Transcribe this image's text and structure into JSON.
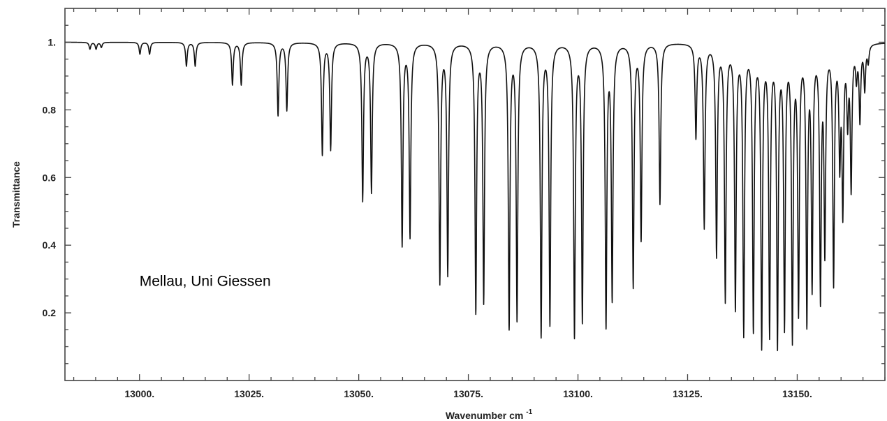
{
  "chart_data": {
    "type": "line",
    "title": "",
    "xlabel": "Wavenumber cm",
    "xlabel_superscript": "-1",
    "ylabel": "Transmittance",
    "xlim": [
      12983,
      13170
    ],
    "ylim": [
      0.0,
      1.1
    ],
    "grid": false,
    "x_ticks": [
      {
        "value": 13000,
        "label": "13000."
      },
      {
        "value": 13025,
        "label": "13025."
      },
      {
        "value": 13050,
        "label": "13050."
      },
      {
        "value": 13075,
        "label": "13075."
      },
      {
        "value": 13100,
        "label": "13100."
      },
      {
        "value": 13125,
        "label": "13125."
      },
      {
        "value": 13150,
        "label": "13150."
      }
    ],
    "y_ticks": [
      {
        "value": 0.2,
        "label": "0.2"
      },
      {
        "value": 0.4,
        "label": "0.4"
      },
      {
        "value": 0.6,
        "label": "0.6"
      },
      {
        "value": 0.8,
        "label": "0.8"
      },
      {
        "value": 1.0,
        "label": "1."
      }
    ],
    "baseline": 1.0,
    "absorption_lines": [
      {
        "x": 12988.7,
        "y": 0.98
      },
      {
        "x": 12990.1,
        "y": 0.98
      },
      {
        "x": 12991.3,
        "y": 0.985
      },
      {
        "x": 13000.1,
        "y": 0.965
      },
      {
        "x": 13002.3,
        "y": 0.965
      },
      {
        "x": 13010.7,
        "y": 0.93
      },
      {
        "x": 13012.7,
        "y": 0.93
      },
      {
        "x": 13021.2,
        "y": 0.875
      },
      {
        "x": 13023.2,
        "y": 0.875
      },
      {
        "x": 13031.6,
        "y": 0.785
      },
      {
        "x": 13033.6,
        "y": 0.8
      },
      {
        "x": 13041.7,
        "y": 0.67
      },
      {
        "x": 13043.6,
        "y": 0.685
      },
      {
        "x": 13050.9,
        "y": 0.535
      },
      {
        "x": 13052.9,
        "y": 0.56
      },
      {
        "x": 13059.9,
        "y": 0.405
      },
      {
        "x": 13061.7,
        "y": 0.43
      },
      {
        "x": 13068.5,
        "y": 0.295
      },
      {
        "x": 13070.3,
        "y": 0.32
      },
      {
        "x": 13076.7,
        "y": 0.21
      },
      {
        "x": 13078.5,
        "y": 0.24
      },
      {
        "x": 13084.3,
        "y": 0.165
      },
      {
        "x": 13086.1,
        "y": 0.19
      },
      {
        "x": 13091.6,
        "y": 0.14
      },
      {
        "x": 13093.6,
        "y": 0.175
      },
      {
        "x": 13099.2,
        "y": 0.14
      },
      {
        "x": 13101.0,
        "y": 0.185
      },
      {
        "x": 13106.4,
        "y": 0.175
      },
      {
        "x": 13107.8,
        "y": 0.255
      },
      {
        "x": 13112.6,
        "y": 0.285
      },
      {
        "x": 13114.4,
        "y": 0.425
      },
      {
        "x": 13118.7,
        "y": 0.525
      },
      {
        "x": 13126.9,
        "y": 0.725
      },
      {
        "x": 13128.8,
        "y": 0.46
      },
      {
        "x": 13131.6,
        "y": 0.38
      },
      {
        "x": 13133.6,
        "y": 0.25
      },
      {
        "x": 13135.9,
        "y": 0.23
      },
      {
        "x": 13137.8,
        "y": 0.155
      },
      {
        "x": 13140.0,
        "y": 0.17
      },
      {
        "x": 13141.9,
        "y": 0.125
      },
      {
        "x": 13143.7,
        "y": 0.16
      },
      {
        "x": 13145.5,
        "y": 0.13
      },
      {
        "x": 13147.1,
        "y": 0.185
      },
      {
        "x": 13148.9,
        "y": 0.15
      },
      {
        "x": 13150.3,
        "y": 0.23
      },
      {
        "x": 13152.2,
        "y": 0.2
      },
      {
        "x": 13153.4,
        "y": 0.305
      },
      {
        "x": 13155.3,
        "y": 0.27
      },
      {
        "x": 13156.3,
        "y": 0.41
      },
      {
        "x": 13158.3,
        "y": 0.305
      },
      {
        "x": 13159.7,
        "y": 0.675
      },
      {
        "x": 13160.4,
        "y": 0.525
      },
      {
        "x": 13161.5,
        "y": 0.79
      },
      {
        "x": 13162.3,
        "y": 0.585
      },
      {
        "x": 13163.5,
        "y": 0.91
      },
      {
        "x": 13164.3,
        "y": 0.78
      },
      {
        "x": 13165.4,
        "y": 0.87
      },
      {
        "x": 13166.2,
        "y": 0.95
      }
    ],
    "annotations": [
      {
        "text": "Mellau, Uni Giessen",
        "x": 13000,
        "y": 0.28
      }
    ]
  }
}
